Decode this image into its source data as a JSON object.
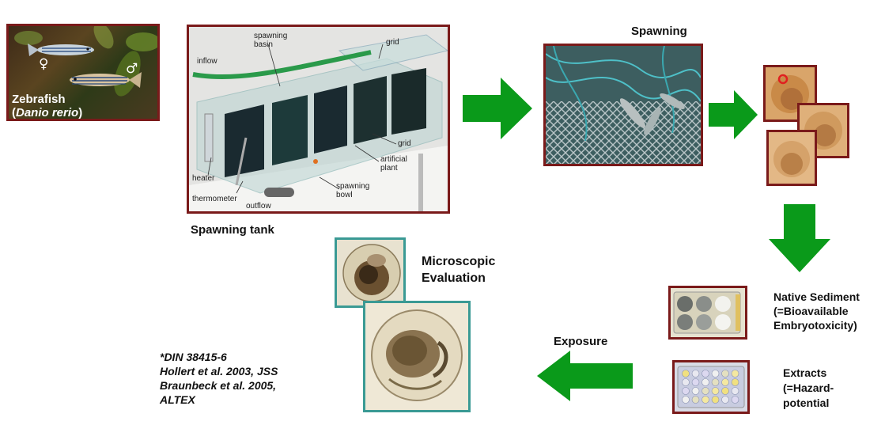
{
  "zebrafish": {
    "title": "Zebrafish",
    "species_open": "(",
    "species": "Danio rerio",
    "species_close": ")",
    "female_symbol": "♀",
    "male_symbol": "♂"
  },
  "tank": {
    "caption": "Spawning tank",
    "labels": {
      "inflow": "inflow",
      "spawning_basin": "spawning\nbasin",
      "grid_top": "grid",
      "grid": "grid",
      "artificial_plant": "artificial\nplant",
      "heater": "heater",
      "thermometer": "thermometer",
      "outflow": "outflow",
      "spawning_bowl": "spawning\nbowl"
    }
  },
  "spawning": {
    "title": "Spawning"
  },
  "microscopic": {
    "line1": "Microscopic",
    "line2": "Evaluation"
  },
  "native_sediment": {
    "line1": "Native Sediment",
    "line2": "(=Bioavailable",
    "line3": "Embryotoxicity)"
  },
  "extracts": {
    "line1": "Extracts",
    "line2": "(=Hazard-",
    "line3": "potential"
  },
  "exposure": {
    "label": "Exposure"
  },
  "references": {
    "line1": "*DIN 38415-6",
    "line2": "Hollert et al. 2003, JSS",
    "line3": "Braunbeck et al. 2005,",
    "line4": "ALTEX"
  },
  "colors": {
    "arrow": "#0a9a1a",
    "maroon_border": "#7a1a1a",
    "teal_border": "#3a9a94"
  }
}
